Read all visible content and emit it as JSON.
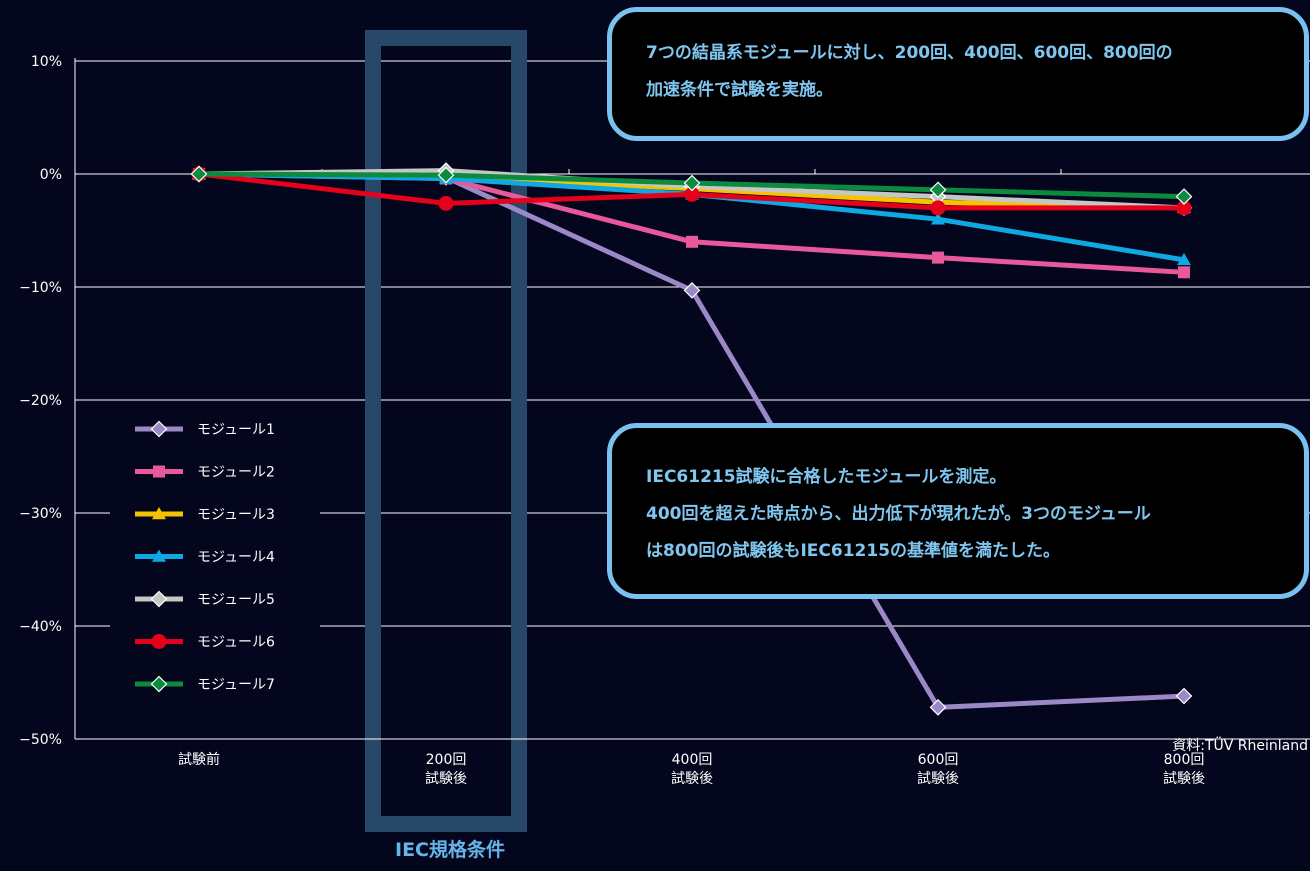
{
  "chart_data": {
    "type": "line",
    "categories": [
      [
        "試験前"
      ],
      [
        "200回",
        "試験後"
      ],
      [
        "400回",
        "試験後"
      ],
      [
        "600回",
        "試験後"
      ],
      [
        "800回",
        "試験後"
      ]
    ],
    "y_tick_labels": [
      "10%",
      "0%",
      "−10%",
      "−20%",
      "−30%",
      "−40%",
      "−50%"
    ],
    "y_ticks": [
      10,
      0,
      -10,
      -20,
      -30,
      -40,
      -50
    ],
    "ylim": [
      -50,
      10
    ],
    "grid": true,
    "legend_position": "bottom-left",
    "series": [
      {
        "name": "モジュール1",
        "color": "#9b88c6",
        "marker": "diamond",
        "values": [
          0,
          -0.3,
          -10.3,
          -47.2,
          -46.2
        ]
      },
      {
        "name": "モジュール2",
        "color": "#e9589b",
        "marker": "square",
        "values": [
          0,
          -0.4,
          -6.0,
          -7.4,
          -8.7
        ]
      },
      {
        "name": "モジュール3",
        "color": "#f5c400",
        "marker": "triangle",
        "values": [
          0,
          -0.2,
          -1.3,
          -2.5,
          -3.0
        ]
      },
      {
        "name": "モジュール4",
        "color": "#10a8e3",
        "marker": "triangle",
        "values": [
          0,
          -0.4,
          -1.8,
          -4.0,
          -7.6
        ]
      },
      {
        "name": "モジュール5",
        "color": "#c4c7c4",
        "marker": "diamond",
        "values": [
          0,
          0.3,
          -1.1,
          -2.0,
          -3.0
        ]
      },
      {
        "name": "モジュール6",
        "color": "#e5001b",
        "marker": "circle",
        "values": [
          0,
          -2.6,
          -1.8,
          -3.0,
          -3.0
        ]
      },
      {
        "name": "モジュール7",
        "color": "#0c8a3e",
        "marker": "diamond",
        "values": [
          0,
          -0.1,
          -0.8,
          -1.4,
          -2.0
        ]
      }
    ]
  },
  "highlight": {
    "label": "IEC規格条件",
    "color": "#284869",
    "category_index": 1
  },
  "callouts": {
    "top": [
      "7つの結晶系モジュールに対し、200回、400回、600回、800回の",
      "加速条件で試験を実施。"
    ],
    "bottom": [
      "IEC61215試験に合格したモジュールを測定。",
      "400回を超えた時点から、出力低下が現れたが。3つのモジュール",
      "は800回の試験後もIEC61215の基準値を満たした。"
    ]
  },
  "source": "資料:TÜV Rheinland"
}
